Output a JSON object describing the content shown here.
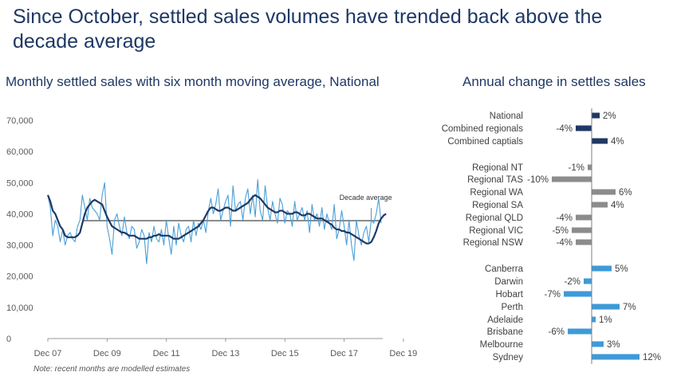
{
  "headline": "Since October, settled sales volumes have trended back above the decade average",
  "note": "Note: recent months are modelled estimates",
  "colors": {
    "title": "#1f3864",
    "monthly": "#4a9fd8",
    "moving_average": "#1f3864",
    "decade_average": "#666666",
    "national_bars": "#1f3864",
    "regional_bars": "#8c8c8c",
    "city_bars": "#3e9ad8"
  },
  "chart_data": [
    {
      "type": "line",
      "title": "Monthly settled sales with six month moving average, National",
      "xlabel": "",
      "ylabel": "",
      "ylim": [
        0,
        70000
      ],
      "y_ticks": [
        0,
        10000,
        20000,
        30000,
        40000,
        50000,
        60000,
        70000
      ],
      "y_tick_labels": [
        "0",
        "10,000",
        "20,000",
        "30,000",
        "40,000",
        "50,000",
        "60,000",
        "70,000"
      ],
      "x_tick_labels": [
        "Dec 07",
        "Dec 09",
        "Dec 11",
        "Dec 13",
        "Dec 15",
        "Dec 17",
        "Dec 19"
      ],
      "x_tick_index": [
        0,
        24,
        48,
        72,
        96,
        120,
        144
      ],
      "decade_average": 37800,
      "annotation": "Decade average",
      "series": [
        {
          "name": "Monthly settled sales",
          "values": [
            46000,
            42000,
            33000,
            38000,
            36000,
            31000,
            35000,
            30000,
            33000,
            34000,
            32000,
            31000,
            36000,
            38000,
            46000,
            42000,
            38000,
            45000,
            42000,
            41000,
            40000,
            38000,
            46000,
            50000,
            36000,
            32000,
            27000,
            38000,
            40000,
            36000,
            33000,
            39000,
            34000,
            32000,
            36000,
            35000,
            29000,
            31000,
            35000,
            33000,
            24000,
            34000,
            31000,
            36000,
            32000,
            31000,
            35000,
            30000,
            38000,
            32000,
            27000,
            36000,
            30000,
            37000,
            33000,
            31000,
            35000,
            36000,
            31000,
            38000,
            33000,
            37000,
            35000,
            38000,
            34000,
            41000,
            45000,
            40000,
            43000,
            48000,
            38000,
            41000,
            44000,
            46000,
            36000,
            49000,
            41000,
            43000,
            44000,
            38000,
            45000,
            48000,
            40000,
            46000,
            39000,
            51000,
            41000,
            38000,
            49000,
            42000,
            38000,
            44000,
            40000,
            37000,
            45000,
            43000,
            37000,
            41000,
            40000,
            36000,
            44000,
            38000,
            40000,
            42000,
            38000,
            41000,
            34000,
            43000,
            38000,
            40000,
            36000,
            42000,
            35000,
            40000,
            37000,
            35000,
            43000,
            32000,
            35000,
            41000,
            36000,
            30000,
            38000,
            30000,
            25000,
            38000,
            33000,
            30000,
            34000,
            36000,
            31000,
            38000,
            37000,
            40000,
            45000,
            37000
          ],
          "color_key": "monthly"
        },
        {
          "name": "Six month moving average",
          "values": [
            46000,
            44000,
            41000,
            40000,
            38000,
            36000,
            35000,
            33000,
            32500,
            32500,
            32500,
            32500,
            33000,
            34000,
            37000,
            40000,
            42000,
            43000,
            44000,
            44500,
            44000,
            43500,
            43000,
            41000,
            39000,
            37500,
            36000,
            35500,
            35000,
            34500,
            34000,
            34000,
            33500,
            33000,
            33000,
            33000,
            32500,
            32000,
            32000,
            32000,
            32000,
            32500,
            32500,
            33000,
            33000,
            33500,
            33000,
            33000,
            33000,
            33000,
            32500,
            32000,
            32000,
            32000,
            32500,
            33000,
            33500,
            34000,
            34500,
            35000,
            35500,
            36000,
            37000,
            38000,
            39500,
            41000,
            42000,
            42000,
            41500,
            41000,
            41000,
            41500,
            42000,
            42000,
            41500,
            41000,
            41000,
            41500,
            42000,
            42500,
            43000,
            43500,
            44500,
            45500,
            46000,
            45500,
            45000,
            44000,
            43000,
            42000,
            41500,
            41000,
            40500,
            40500,
            41000,
            41000,
            40500,
            40000,
            40000,
            40000,
            40500,
            40500,
            40000,
            39500,
            39500,
            40000,
            40000,
            39500,
            39000,
            38500,
            38500,
            38500,
            38000,
            37500,
            37000,
            36500,
            35500,
            35000,
            35000,
            34500,
            34500,
            34000,
            34000,
            33500,
            33000,
            32500,
            32000,
            31500,
            31000,
            30500,
            30500,
            31000,
            32500,
            34500,
            37000,
            38500,
            39500,
            40000
          ],
          "color_key": "moving_average"
        }
      ]
    },
    {
      "type": "bar",
      "orientation": "horizontal",
      "title": "Annual change in settles sales",
      "unit": "%",
      "groups": [
        {
          "color_key": "national_bars",
          "items": [
            {
              "label": "National",
              "value": 2,
              "value_label": "2%"
            },
            {
              "label": "Combined regionals",
              "value": -4,
              "value_label": "-4%"
            },
            {
              "label": "Combined captials",
              "value": 4,
              "value_label": "4%"
            }
          ]
        },
        {
          "color_key": "regional_bars",
          "items": [
            {
              "label": "Regional NT",
              "value": -1,
              "value_label": "-1%"
            },
            {
              "label": "Regional TAS",
              "value": -10,
              "value_label": "-10%"
            },
            {
              "label": "Regional WA",
              "value": 6,
              "value_label": "6%"
            },
            {
              "label": "Regional SA",
              "value": 4,
              "value_label": "4%"
            },
            {
              "label": "Regional QLD",
              "value": -4,
              "value_label": "-4%"
            },
            {
              "label": "Regional VIC",
              "value": -5,
              "value_label": "-5%"
            },
            {
              "label": "Regional NSW",
              "value": -4,
              "value_label": "-4%"
            }
          ]
        },
        {
          "color_key": "city_bars",
          "items": [
            {
              "label": "Canberra",
              "value": 5,
              "value_label": "5%"
            },
            {
              "label": "Darwin",
              "value": -2,
              "value_label": "-2%"
            },
            {
              "label": "Hobart",
              "value": -7,
              "value_label": "-7%"
            },
            {
              "label": "Perth",
              "value": 7,
              "value_label": "7%"
            },
            {
              "label": "Adelaide",
              "value": 1,
              "value_label": "1%"
            },
            {
              "label": "Brisbane",
              "value": -6,
              "value_label": "-6%"
            },
            {
              "label": "Melbourne",
              "value": 3,
              "value_label": "3%"
            },
            {
              "label": "Sydney",
              "value": 12,
              "value_label": "12%"
            }
          ]
        }
      ]
    }
  ]
}
